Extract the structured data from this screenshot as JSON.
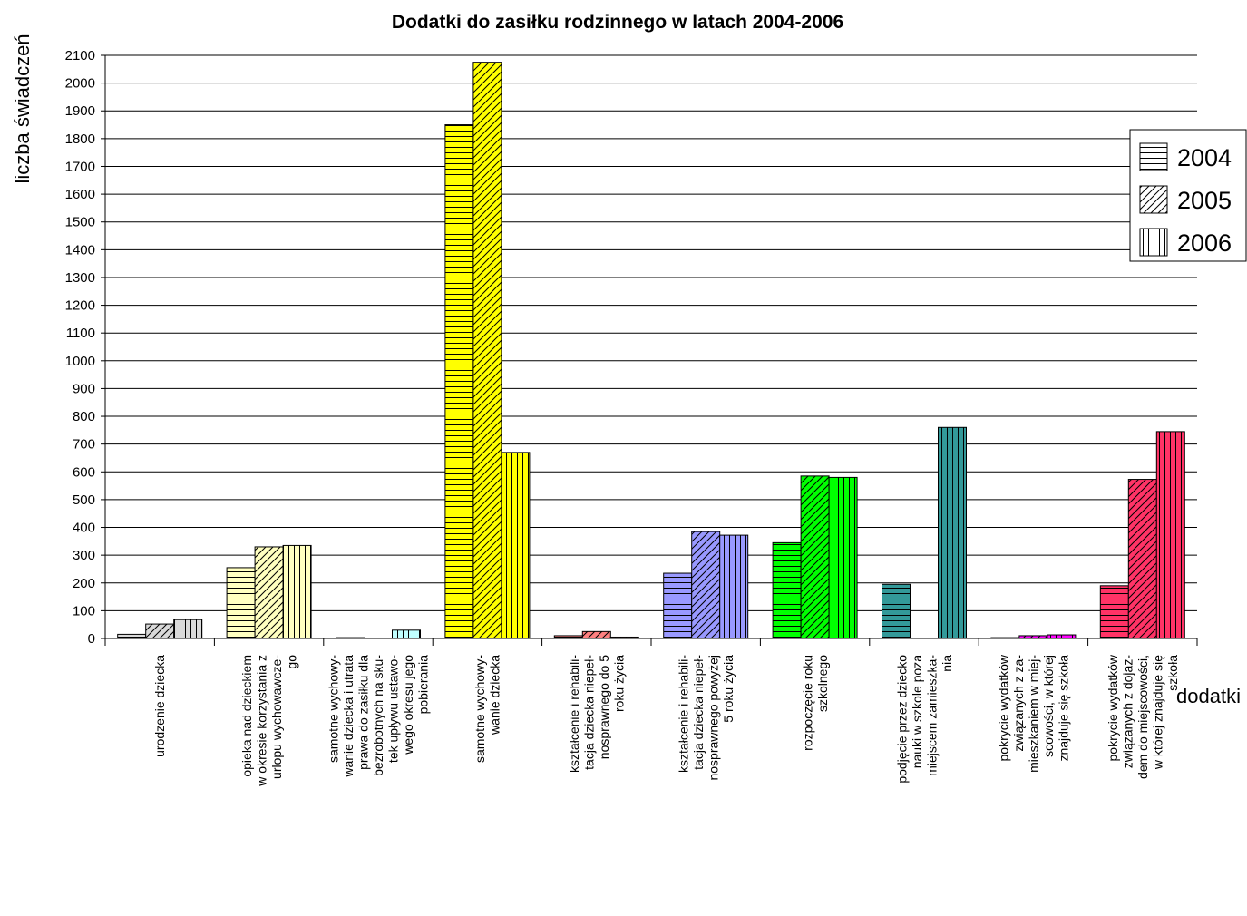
{
  "chart_data": {
    "type": "bar",
    "title": "Dodatki do zasiłku rodzinnego w latach 2004-2006",
    "xlabel": "dodatki",
    "ylabel": "liczba świadczeń",
    "ylim": [
      0,
      2100
    ],
    "ytick_step": 100,
    "grid": true,
    "legend_position": "right",
    "categories": [
      [
        "urodzenie dziecka"
      ],
      [
        "opieka nad dzieckiem",
        "w okresie korzystania z",
        "urlopu wychowawcze-",
        "go"
      ],
      [
        "samotne wychowy-",
        "wanie dziecka i utrata",
        "prawa do zasiłku dla",
        "bezrobotnych na sku-",
        "tek upływu ustawo-",
        "wego okresu jego",
        "pobierania"
      ],
      [
        "samotne wychowy-",
        "wanie dziecka"
      ],
      [
        "kształcenie i rehabili-",
        "tacja dziecka niepeł-",
        "nosprawnego do 5",
        "roku życia"
      ],
      [
        "kształcenie i rehabili-",
        "tacja dziecka niepeł-",
        "nosprawnego powyżej",
        "5 roku życia"
      ],
      [
        "rozpoczęcie roku",
        "szkolnego"
      ],
      [
        "podjęcie przez dziecko",
        "nauki w szkole poza",
        "miejscem zamieszka-",
        "nia"
      ],
      [
        "pokrycie wydatków",
        "związanych z za-",
        "mieszkaniem w miej-",
        "scowości, w której",
        "znajduje się szkoła"
      ],
      [
        "pokrycie wydatków",
        "związanych z dojaz-",
        "dem do miejscowości,",
        "w której znajduje się",
        "szkoła"
      ]
    ],
    "category_colors": [
      "#d9d9d9",
      "#ffffc0",
      "#c0ffff",
      "#ffff00",
      "#ff8080",
      "#9999ff",
      "#00ff00",
      "#339999",
      "#ff00ff",
      "#ff3366"
    ],
    "series": [
      {
        "name": "2004",
        "pattern": "horizontal",
        "values": [
          15,
          255,
          3,
          1850,
          10,
          235,
          345,
          195,
          3,
          190
        ]
      },
      {
        "name": "2005",
        "pattern": "diagonal",
        "values": [
          52,
          330,
          1,
          2075,
          25,
          385,
          585,
          0,
          10,
          573
        ]
      },
      {
        "name": "2006",
        "pattern": "vertical",
        "values": [
          68,
          335,
          30,
          670,
          5,
          372,
          580,
          760,
          13,
          745
        ]
      }
    ]
  }
}
